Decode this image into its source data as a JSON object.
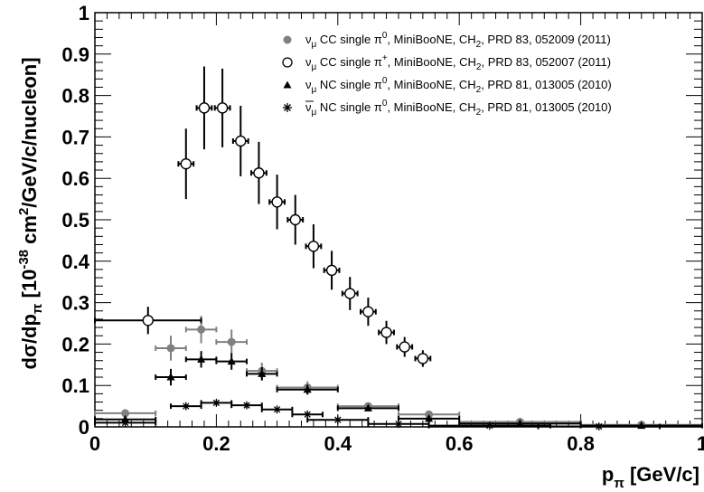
{
  "chart_data": {
    "type": "scatter",
    "ylabel": "dσ/dp_π [10^-38 cm²/GeV/c/nucleon]",
    "xlabel": "p_π [GeV/c]",
    "xlim": [
      0,
      1
    ],
    "ylim": [
      0,
      1
    ],
    "x_ticks": [
      "0",
      "0.2",
      "0.4",
      "0.6",
      "0.8",
      "1"
    ],
    "y_ticks": [
      "0",
      "0.1",
      "0.2",
      "0.3",
      "0.4",
      "0.5",
      "0.6",
      "0.7",
      "0.8",
      "0.9",
      "1"
    ],
    "legend_position": "top-right",
    "series": [
      {
        "name": "ν_μ CC single π⁰, MiniBooNE, CH₂, PRD 83, 052009 (2011)",
        "marker": "filled-circle",
        "color": "#808080",
        "points": [
          {
            "x": 0.05,
            "y": 0.033,
            "xerr": 0.05,
            "yerr": 0.006
          },
          {
            "x": 0.125,
            "y": 0.19,
            "xerr": 0.025,
            "yerr": 0.03
          },
          {
            "x": 0.175,
            "y": 0.235,
            "xerr": 0.025,
            "yerr": 0.033
          },
          {
            "x": 0.225,
            "y": 0.205,
            "xerr": 0.025,
            "yerr": 0.03
          },
          {
            "x": 0.275,
            "y": 0.135,
            "xerr": 0.025,
            "yerr": 0.02
          },
          {
            "x": 0.35,
            "y": 0.095,
            "xerr": 0.05,
            "yerr": 0.015
          },
          {
            "x": 0.45,
            "y": 0.05,
            "xerr": 0.05,
            "yerr": 0.008
          },
          {
            "x": 0.55,
            "y": 0.03,
            "xerr": 0.05,
            "yerr": 0.005
          },
          {
            "x": 0.7,
            "y": 0.012,
            "xerr": 0.1,
            "yerr": 0.003
          },
          {
            "x": 0.9,
            "y": 0.005,
            "xerr": 0.1,
            "yerr": 0.002
          }
        ]
      },
      {
        "name": "ν_μ CC single π⁺, MiniBooNE, CH₂, PRD 83, 052007 (2011)",
        "marker": "open-circle",
        "color": "#000000",
        "points": [
          {
            "x": 0.0875,
            "y": 0.257,
            "xerr": 0.0875,
            "yerr": 0.033
          },
          {
            "x": 0.15,
            "y": 0.635,
            "xerr": 0.0125,
            "yerr": 0.085
          },
          {
            "x": 0.18,
            "y": 0.77,
            "xerr": 0.0125,
            "yerr": 0.1
          },
          {
            "x": 0.21,
            "y": 0.77,
            "xerr": 0.0125,
            "yerr": 0.095
          },
          {
            "x": 0.24,
            "y": 0.69,
            "xerr": 0.0125,
            "yerr": 0.085
          },
          {
            "x": 0.27,
            "y": 0.613,
            "xerr": 0.0125,
            "yerr": 0.075
          },
          {
            "x": 0.3,
            "y": 0.543,
            "xerr": 0.0125,
            "yerr": 0.066
          },
          {
            "x": 0.33,
            "y": 0.5,
            "xerr": 0.0125,
            "yerr": 0.06
          },
          {
            "x": 0.36,
            "y": 0.436,
            "xerr": 0.0125,
            "yerr": 0.053
          },
          {
            "x": 0.39,
            "y": 0.378,
            "xerr": 0.0125,
            "yerr": 0.047
          },
          {
            "x": 0.42,
            "y": 0.322,
            "xerr": 0.0125,
            "yerr": 0.04
          },
          {
            "x": 0.45,
            "y": 0.278,
            "xerr": 0.0125,
            "yerr": 0.034
          },
          {
            "x": 0.48,
            "y": 0.228,
            "xerr": 0.0125,
            "yerr": 0.028
          },
          {
            "x": 0.51,
            "y": 0.193,
            "xerr": 0.0125,
            "yerr": 0.024
          },
          {
            "x": 0.54,
            "y": 0.165,
            "xerr": 0.0125,
            "yerr": 0.02
          }
        ]
      },
      {
        "name": "ν_μ NC single π⁰, MiniBooNE, CH₂, PRD 81, 013005 (2010)",
        "marker": "filled-triangle",
        "color": "#000000",
        "points": [
          {
            "x": 0.05,
            "y": 0.018,
            "xerr": 0.05,
            "yerr": 0.004
          },
          {
            "x": 0.125,
            "y": 0.12,
            "xerr": 0.025,
            "yerr": 0.02
          },
          {
            "x": 0.175,
            "y": 0.163,
            "xerr": 0.025,
            "yerr": 0.02
          },
          {
            "x": 0.225,
            "y": 0.158,
            "xerr": 0.025,
            "yerr": 0.02
          },
          {
            "x": 0.275,
            "y": 0.128,
            "xerr": 0.025,
            "yerr": 0.016
          },
          {
            "x": 0.35,
            "y": 0.09,
            "xerr": 0.05,
            "yerr": 0.012
          },
          {
            "x": 0.45,
            "y": 0.045,
            "xerr": 0.05,
            "yerr": 0.007
          },
          {
            "x": 0.55,
            "y": 0.02,
            "xerr": 0.05,
            "yerr": 0.004
          },
          {
            "x": 0.7,
            "y": 0.008,
            "xerr": 0.1,
            "yerr": 0.002
          },
          {
            "x": 0.9,
            "y": 0.003,
            "xerr": 0.1,
            "yerr": 0.001
          }
        ]
      },
      {
        "name": "ν̄_μ NC single π⁰, MiniBooNE, CH₂, PRD 81, 013005 (2010)",
        "marker": "star",
        "color": "#000000",
        "points": [
          {
            "x": 0.05,
            "y": 0.01,
            "xerr": 0.05,
            "yerr": 0.002
          },
          {
            "x": 0.15,
            "y": 0.05,
            "xerr": 0.025,
            "yerr": 0.005
          },
          {
            "x": 0.2,
            "y": 0.058,
            "xerr": 0.025,
            "yerr": 0.005
          },
          {
            "x": 0.25,
            "y": 0.052,
            "xerr": 0.025,
            "yerr": 0.005
          },
          {
            "x": 0.3,
            "y": 0.042,
            "xerr": 0.025,
            "yerr": 0.004
          },
          {
            "x": 0.35,
            "y": 0.03,
            "xerr": 0.025,
            "yerr": 0.004
          },
          {
            "x": 0.4,
            "y": 0.017,
            "xerr": 0.05,
            "yerr": 0.003
          },
          {
            "x": 0.5,
            "y": 0.007,
            "xerr": 0.05,
            "yerr": 0.002
          },
          {
            "x": 0.65,
            "y": 0.003,
            "xerr": 0.1,
            "yerr": 0.001
          },
          {
            "x": 0.83,
            "y": 0.001,
            "xerr": 0.1,
            "yerr": 0.001
          }
        ]
      }
    ]
  }
}
